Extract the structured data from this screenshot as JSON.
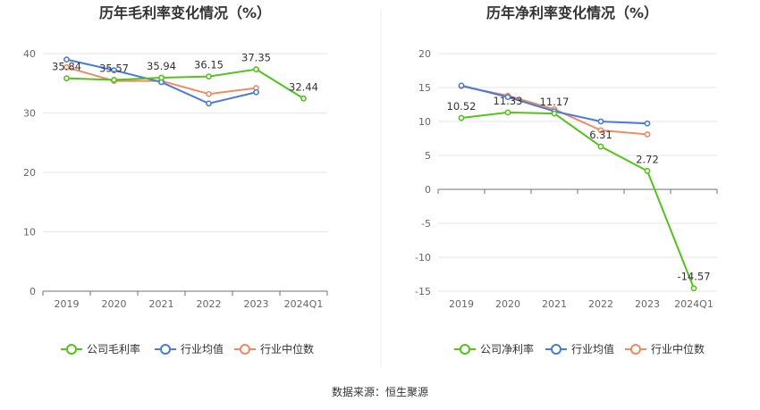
{
  "source_label": "数据来源：恒生聚源",
  "chart_data": [
    {
      "type": "line",
      "title": "历年毛利率变化情况（%）",
      "categories": [
        "2019",
        "2020",
        "2021",
        "2022",
        "2023",
        "2024Q1"
      ],
      "ylim": [
        0,
        40
      ],
      "yticks": [
        0,
        10,
        20,
        30,
        40
      ],
      "grid": true,
      "legend_position": "bottom",
      "series": [
        {
          "name": "公司毛利率",
          "color": "#52c41a",
          "values": [
            35.84,
            35.57,
            35.94,
            36.15,
            37.35,
            32.44
          ],
          "labels": [
            "35.84",
            "35.57",
            "35.94",
            "36.15",
            "37.35",
            "32.44"
          ]
        },
        {
          "name": "行业均值",
          "color": "#4a7bd8",
          "values": [
            39.0,
            37.2,
            35.2,
            31.6,
            33.5,
            null
          ]
        },
        {
          "name": "行业中位数",
          "color": "#f08a60",
          "values": [
            37.7,
            35.4,
            35.4,
            33.2,
            34.2,
            null
          ]
        }
      ]
    },
    {
      "type": "line",
      "title": "历年净利率变化情况（%）",
      "categories": [
        "2019",
        "2020",
        "2021",
        "2022",
        "2023",
        "2024Q1"
      ],
      "ylim": [
        -15,
        20
      ],
      "yticks": [
        -15,
        -10,
        -5,
        0,
        5,
        10,
        15,
        20
      ],
      "grid": true,
      "legend_position": "bottom",
      "series": [
        {
          "name": "公司净利率",
          "color": "#52c41a",
          "values": [
            10.52,
            11.33,
            11.17,
            6.31,
            2.72,
            -14.57
          ],
          "labels": [
            "10.52",
            "11.33",
            "11.17",
            "6.31",
            "2.72",
            "-14.57"
          ]
        },
        {
          "name": "行业均值",
          "color": "#4a7bd8",
          "values": [
            15.3,
            13.6,
            11.5,
            10.0,
            9.7,
            null
          ]
        },
        {
          "name": "行业中位数",
          "color": "#f08a60",
          "values": [
            15.2,
            13.8,
            11.8,
            8.7,
            8.1,
            null
          ]
        }
      ]
    }
  ]
}
